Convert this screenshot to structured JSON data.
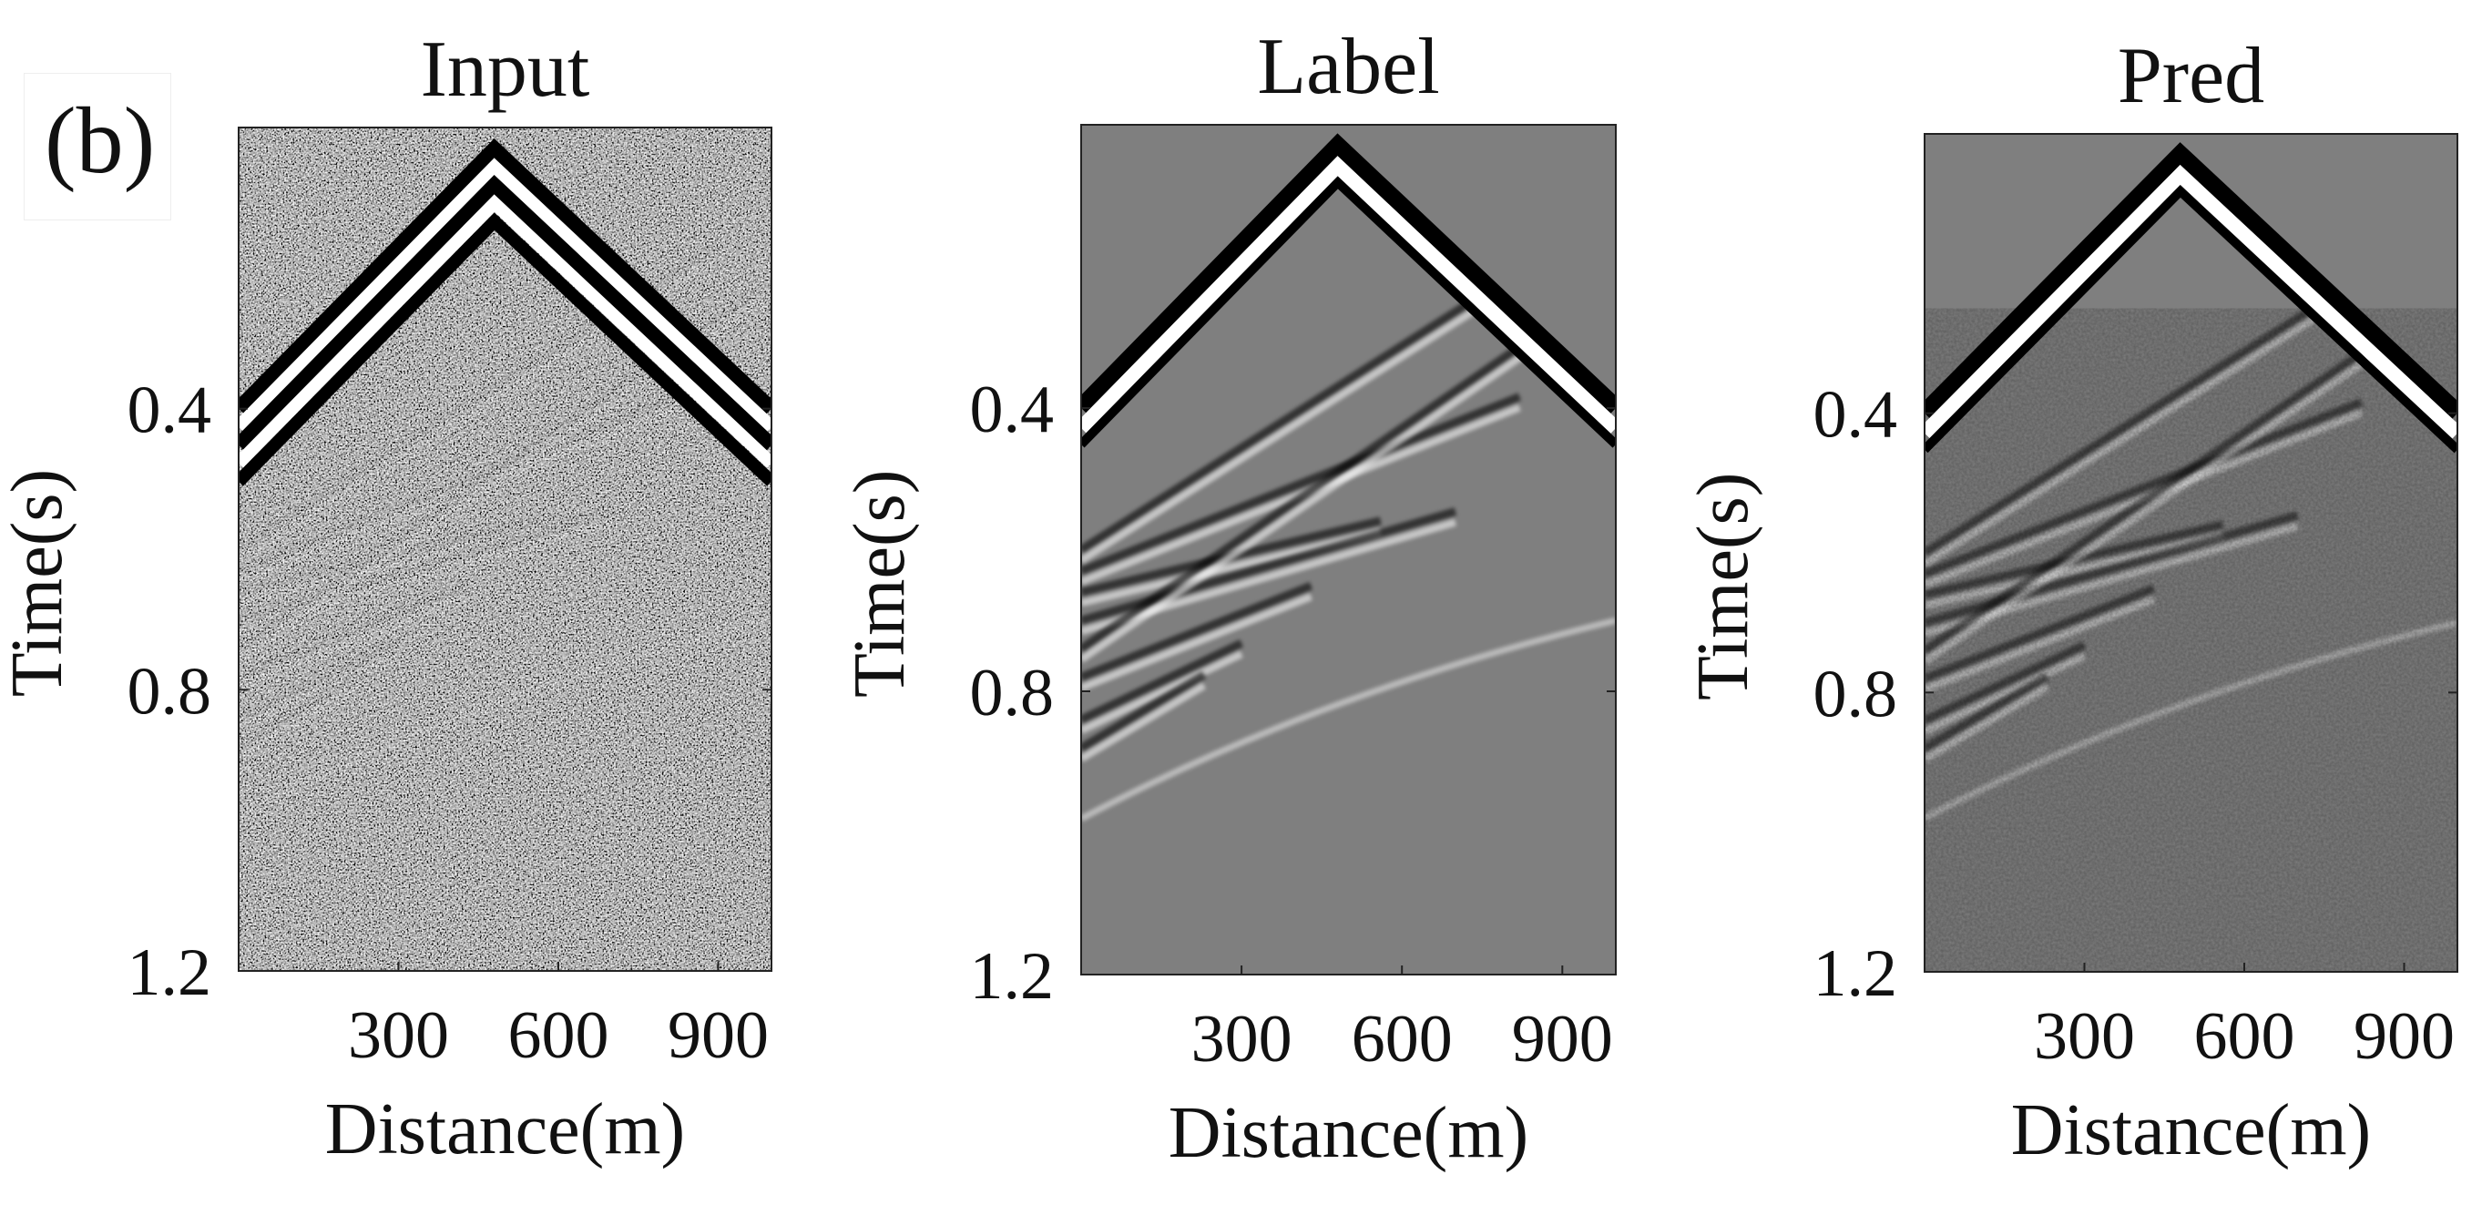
{
  "figure": {
    "panel_label": "(b)",
    "x_axis_label": "Distance(m)",
    "y_axis_label": "Time(s)",
    "x_tick_labels": [
      "300",
      "600",
      "900"
    ],
    "y_tick_labels": [
      "0.4",
      "0.8",
      "1.2"
    ],
    "x_ticks": [
      300,
      600,
      900
    ],
    "y_ticks": [
      0.4,
      0.8,
      1.2
    ],
    "x_range_m": [
      0,
      1000
    ],
    "y_range_s": [
      0,
      1.2
    ],
    "colormap": "grayscale seismic",
    "panels": [
      {
        "id": "input",
        "title": "Input",
        "noise": "strong random noise"
      },
      {
        "id": "label",
        "title": "Label",
        "noise": "clean"
      },
      {
        "id": "pred",
        "title": "Pred",
        "noise": "mild residual noise"
      }
    ]
  }
}
